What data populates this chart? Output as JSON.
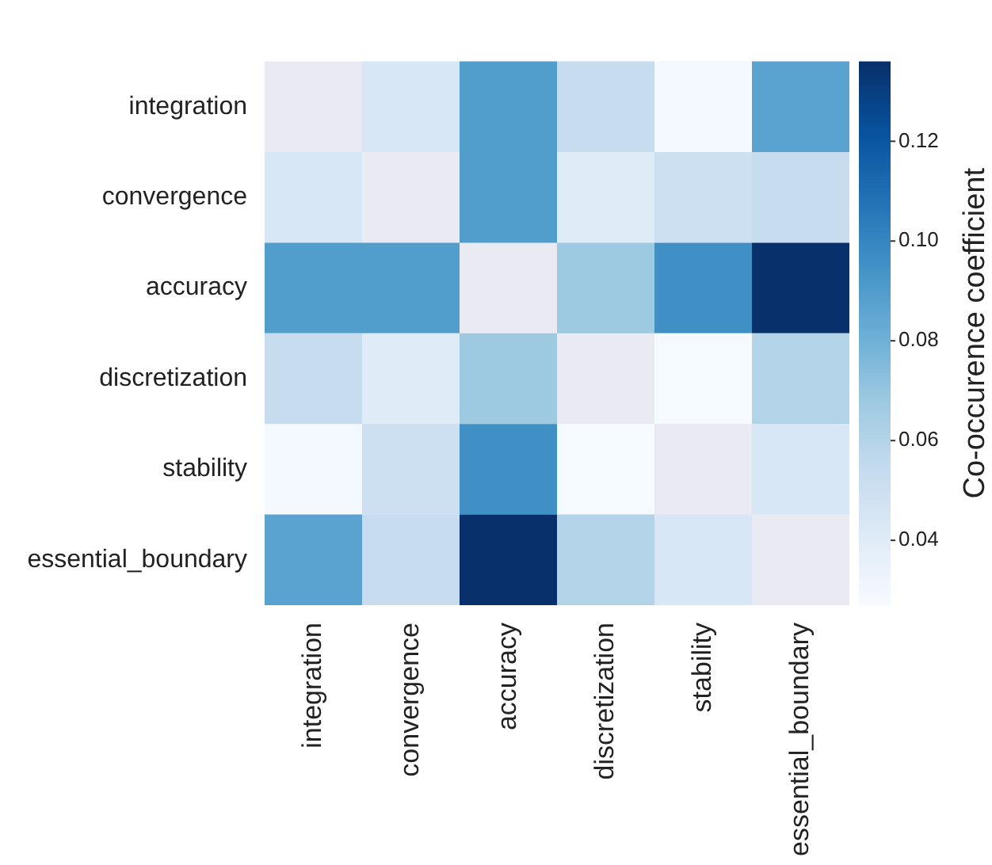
{
  "chart_data": {
    "type": "heatmap",
    "clabel": "Co-occurence coefficient",
    "categories": [
      "integration",
      "convergence",
      "accuracy",
      "discretization",
      "stability",
      "essential_boundary"
    ],
    "y_categories": [
      "integration",
      "convergence",
      "accuracy",
      "discretization",
      "stability",
      "essential_boundary"
    ],
    "cells": [
      [
        null,
        0.044,
        0.09,
        0.053,
        0.029,
        0.087
      ],
      [
        0.044,
        null,
        0.09,
        0.04,
        0.05,
        0.053
      ],
      [
        0.09,
        0.09,
        null,
        0.068,
        0.096,
        0.136
      ],
      [
        0.053,
        0.04,
        0.068,
        null,
        0.028,
        0.061
      ],
      [
        0.029,
        0.05,
        0.096,
        0.028,
        null,
        0.044
      ],
      [
        0.087,
        0.053,
        0.136,
        0.061,
        0.044,
        null
      ]
    ],
    "clim": [
      0.027,
      0.136
    ],
    "cticks": [
      0.04,
      0.06,
      0.08,
      {
        "value": 0.1,
        "label": "0.10"
      },
      0.12
    ]
  }
}
